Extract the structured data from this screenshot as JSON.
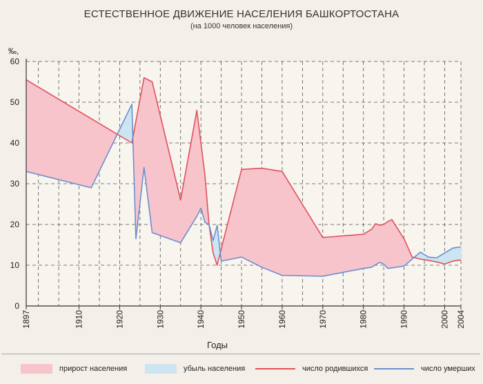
{
  "chart_data": {
    "type": "area",
    "title": "ЕСТЕСТВЕННОЕ ДВИЖЕНИЕ НАСЕЛЕНИЯ БАШКОРТОСТАНА",
    "subtitle": "(на 1000 человек населения)",
    "ylabel": "‰,",
    "xlabel": "Годы",
    "xlim": [
      1897,
      2004
    ],
    "ylim": [
      0,
      60
    ],
    "yticks": [
      0,
      10,
      20,
      30,
      40,
      50,
      60
    ],
    "xtick_labels": [
      "1897",
      "1910",
      "1920",
      "1930",
      "1940",
      "1950",
      "1960",
      "1970",
      "1980",
      "1990",
      "2000",
      "2004"
    ],
    "xtick_values": [
      1897,
      1910,
      1920,
      1930,
      1940,
      1950,
      1960,
      1970,
      1980,
      1990,
      2000,
      2004
    ],
    "grid": true,
    "legend_position": "bottom",
    "series": [
      {
        "name": "число родившихся",
        "color": "#e0505a",
        "x": [
          1897,
          1923,
          1926,
          1928,
          1935,
          1939,
          1941,
          1942,
          1943,
          1944,
          1945,
          1950,
          1955,
          1960,
          1970,
          1980,
          1982,
          1983,
          1984,
          1985,
          1986,
          1987,
          1990,
          1992,
          1994,
          1996,
          1998,
          2000,
          2002,
          2004
        ],
        "values": [
          55.5,
          40,
          56,
          55,
          26,
          48,
          32,
          20,
          13,
          10,
          14,
          33.5,
          33.8,
          33,
          16.8,
          17.6,
          18.8,
          20.2,
          19.8,
          20,
          20.7,
          21.2,
          16.5,
          12,
          11.5,
          11.2,
          10.8,
          10.3,
          11,
          11.3
        ]
      },
      {
        "name": "число умерших",
        "color": "#6a8fce",
        "x": [
          1897,
          1913,
          1923,
          1924,
          1926,
          1928,
          1935,
          1939,
          1940,
          1941,
          1942,
          1943,
          1944,
          1945,
          1950,
          1955,
          1960,
          1970,
          1980,
          1982,
          1984,
          1985,
          1986,
          1990,
          1992,
          1994,
          1996,
          1998,
          2000,
          2002,
          2004
        ],
        "values": [
          33,
          29,
          49.5,
          16.5,
          34,
          18,
          15.5,
          22,
          24,
          20.5,
          20,
          16,
          19.8,
          11,
          12,
          9.5,
          7.5,
          7.3,
          9.2,
          9.5,
          10.7,
          10.3,
          9.2,
          9.8,
          11.5,
          13.2,
          12,
          11.8,
          13,
          14.2,
          14.5
        ]
      }
    ],
    "legend": [
      {
        "label": "прирост населения",
        "kind": "fill",
        "color": "#f7c4cc"
      },
      {
        "label": "убыль населения",
        "kind": "fill",
        "color": "#cde4f2"
      },
      {
        "label": "число родившихся",
        "kind": "line",
        "color": "#e0505a"
      },
      {
        "label": "число умерших",
        "kind": "line",
        "color": "#6a8fce"
      }
    ]
  }
}
